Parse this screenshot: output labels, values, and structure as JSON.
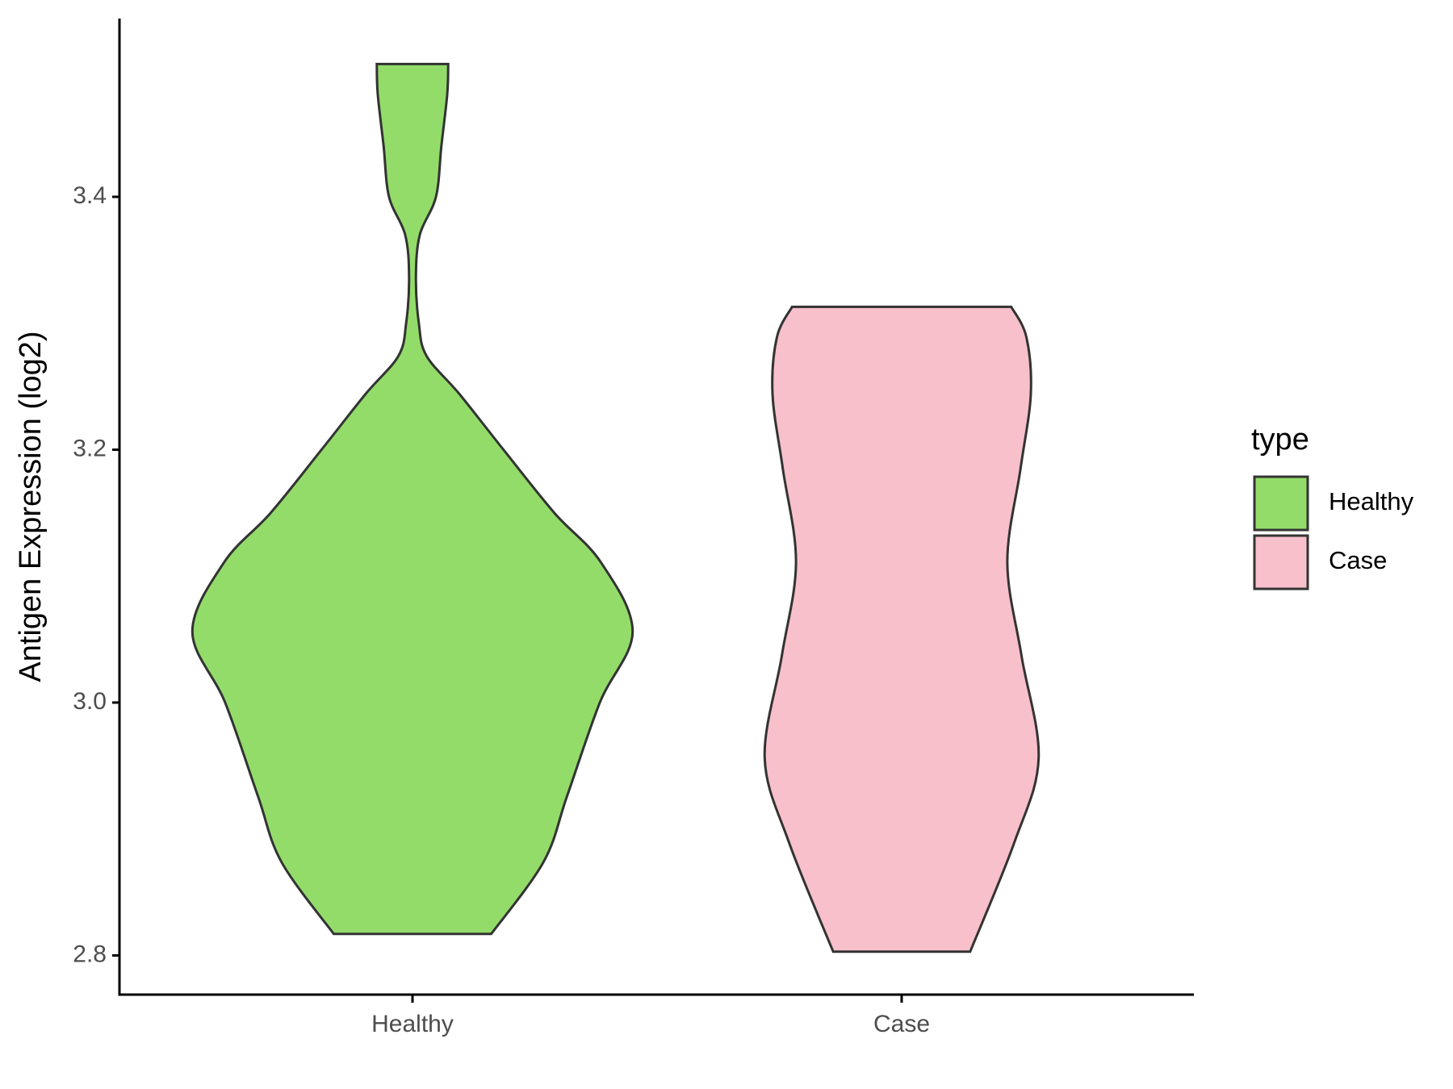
{
  "chart_data": {
    "type": "violin",
    "y_label": "Antigen Expression (log2)",
    "categories": [
      "Healthy",
      "Case"
    ],
    "ylim": [
      2.769,
      3.541
    ],
    "yticks": [
      {
        "value": 2.8,
        "label": "2.8"
      },
      {
        "value": 3.0,
        "label": "3.0"
      },
      {
        "value": 3.2,
        "label": "3.2"
      },
      {
        "value": 3.4,
        "label": "3.4"
      }
    ],
    "legend_title": "type",
    "legend_position": "right",
    "series": [
      {
        "name": "Healthy",
        "color": "#93dc6a",
        "y": [
          3.505,
          3.481,
          3.44,
          3.4,
          3.37,
          3.337,
          3.3,
          3.274,
          3.244,
          3.2,
          3.15,
          3.111,
          3.056,
          3.0,
          2.926,
          2.874,
          2.817
        ],
        "half_width": [
          0.073,
          0.071,
          0.059,
          0.048,
          0.015,
          0.007,
          0.013,
          0.029,
          0.096,
          0.186,
          0.29,
          0.385,
          0.45,
          0.383,
          0.316,
          0.268,
          0.161
        ]
      },
      {
        "name": "Case",
        "color": "#f7c0cb",
        "y": [
          3.313,
          3.289,
          3.244,
          3.185,
          3.111,
          3.037,
          2.956,
          2.889,
          2.803
        ],
        "half_width": [
          0.224,
          0.255,
          0.264,
          0.243,
          0.216,
          0.245,
          0.28,
          0.23,
          0.14
        ]
      }
    ]
  }
}
